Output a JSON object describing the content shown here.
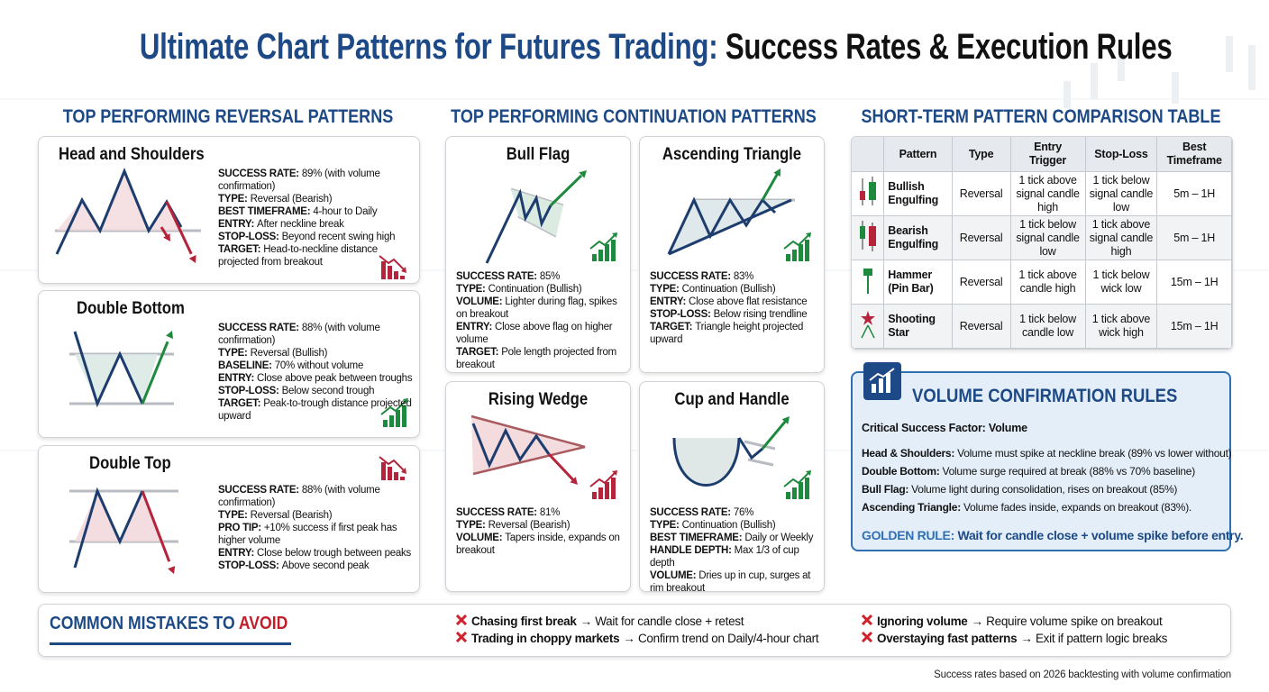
{
  "header": {
    "title_main": "Ultimate Chart Patterns for Futures Trading:",
    "title_accent": "Success Rates & Execution Rules"
  },
  "reversal": {
    "heading": "TOP PERFORMING REVERSAL PATTERNS",
    "cards": [
      {
        "title": "Head and Shoulders",
        "lines": [
          {
            "label": "SUCCESS RATE:",
            "text": "89% (with volume confirmation)"
          },
          {
            "label": "TYPE:",
            "text": "Reversal (Bearish)"
          },
          {
            "label": "BEST TIMEFRAME:",
            "text": "4-hour to Daily"
          },
          {
            "label": "ENTRY:",
            "text": "After neckline break"
          },
          {
            "label": "STOP-LOSS:",
            "text": "Beyond recent swing high"
          },
          {
            "label": "TARGET:",
            "text": "Head-to-neckline distance projected from breakout"
          }
        ]
      },
      {
        "title": "Double Bottom",
        "lines": [
          {
            "label": "SUCCESS RATE:",
            "text": "88% (with volume confirmation)"
          },
          {
            "label": "TYPE:",
            "text": "Reversal (Bullish)"
          },
          {
            "label": "BASELINE:",
            "text": "70% without volume"
          },
          {
            "label": "ENTRY:",
            "text": "Close above peak between troughs"
          },
          {
            "label": "STOP-LOSS:",
            "text": "Below second trough"
          },
          {
            "label": "TARGET:",
            "text": "Peak-to-trough distance projected upward"
          }
        ]
      },
      {
        "title": "Double Top",
        "lines": [
          {
            "label": "SUCCESS RATE:",
            "text": "88% (with volume confirmation)"
          },
          {
            "label": "TYPE:",
            "text": "Reversal (Bearish)"
          },
          {
            "label": "PRO TIP:",
            "text": "+10% success if first peak has higher volume"
          },
          {
            "label": "ENTRY:",
            "text": "Close below trough between peaks"
          },
          {
            "label": "STOP-LOSS:",
            "text": "Above second peak"
          }
        ]
      }
    ]
  },
  "continuation": {
    "heading": "TOP PERFORMING CONTINUATION PATTERNS",
    "cards": [
      {
        "title": "Bull Flag",
        "lines": [
          {
            "label": "SUCCESS RATE:",
            "text": "85%"
          },
          {
            "label": "TYPE:",
            "text": "Continuation (Bullish)"
          },
          {
            "label": "VOLUME:",
            "text": "Lighter during flag, spikes on breakout"
          },
          {
            "label": "ENTRY:",
            "text": "Close above flag on higher volume"
          },
          {
            "label": "TARGET:",
            "text": "Pole length projected from breakout"
          }
        ]
      },
      {
        "title": "Ascending Triangle",
        "lines": [
          {
            "label": "SUCCESS RATE:",
            "text": "83%"
          },
          {
            "label": "TYPE:",
            "text": "Continuation (Bullish)"
          },
          {
            "label": "ENTRY:",
            "text": "Close above flat resistance"
          },
          {
            "label": "STOP-LOSS:",
            "text": "Below rising trendline"
          },
          {
            "label": "TARGET:",
            "text": "Triangle height projected upward"
          }
        ]
      },
      {
        "title": "Rising Wedge",
        "lines": [
          {
            "label": "SUCCESS RATE:",
            "text": "81%"
          },
          {
            "label": "TYPE:",
            "text": "Reversal (Bearish)"
          },
          {
            "label": "VOLUME:",
            "text": "Tapers inside, expands on breakout"
          }
        ]
      },
      {
        "title": "Cup and Handle",
        "lines": [
          {
            "label": "SUCCESS RATE:",
            "text": "76%"
          },
          {
            "label": "TYPE:",
            "text": "Continuation (Bullish)"
          },
          {
            "label": "BEST TIMEFRAME:",
            "text": "Daily or Weekly"
          },
          {
            "label": "HANDLE DEPTH:",
            "text": "Max 1/3 of cup depth"
          },
          {
            "label": "VOLUME:",
            "text": "Dries up in cup, surges at rim breakout"
          }
        ]
      }
    ]
  },
  "table": {
    "heading": "SHORT-TERM PATTERN COMPARISON TABLE",
    "columns": [
      "Pattern",
      "Type",
      "Entry Trigger",
      "Stop-Loss",
      "Best Timeframe"
    ],
    "rows": [
      [
        "Bullish Engulfing",
        "Reversal",
        "1 tick above signal candle high",
        "1 tick below signal candle low",
        "5m – 1H"
      ],
      [
        "Bearish Engulfing",
        "Reversal",
        "1 tick below signal candle low",
        "1 tick above signal candle high",
        "5m – 1H"
      ],
      [
        "Hammer (Pin Bar)",
        "Reversal",
        "1 tick above candle high",
        "1 tick below wick low",
        "15m – 1H"
      ],
      [
        "Shooting Star",
        "Reversal",
        "1 tick below candle low",
        "1 tick above wick high",
        "15m – 1H"
      ]
    ]
  },
  "volume": {
    "title": "VOLUME CONFIRMATION RULES",
    "subtitle": "Critical Success Factor: Volume",
    "items": [
      {
        "label": "Head & Shoulders:",
        "text": "Volume must spike at neckline break (89% vs lower without)"
      },
      {
        "label": "Double Bottom:",
        "text": "Volume surge required at break (88% vs 70% baseline)"
      },
      {
        "label": "Bull Flag:",
        "text": "Volume light during consolidation, rises on breakout (85%)"
      },
      {
        "label": "Ascending Triangle:",
        "text": "Volume fades inside, expands on breakout (83%)."
      }
    ],
    "golden": {
      "label": "GOLDEN RULE:",
      "text": "Wait for candle close + volume spike before entry."
    }
  },
  "mistakes": {
    "title": "COMMON MISTAKES TO",
    "title_accent": "AVOID",
    "items": [
      {
        "label": "Chasing first break",
        "text": "→ Wait for candle close + retest"
      },
      {
        "label": "Trading in choppy markets",
        "text": "→ Confirm trend on Daily/4-hour chart"
      },
      {
        "label": "Ignoring volume",
        "text": "→ Require volume spike on breakout"
      },
      {
        "label": "Overstaying fast patterns",
        "text": "→ Exit if pattern logic breaks"
      }
    ]
  },
  "footer": {
    "note": "Success rates based on 2026 backtesting with volume confirmation"
  }
}
